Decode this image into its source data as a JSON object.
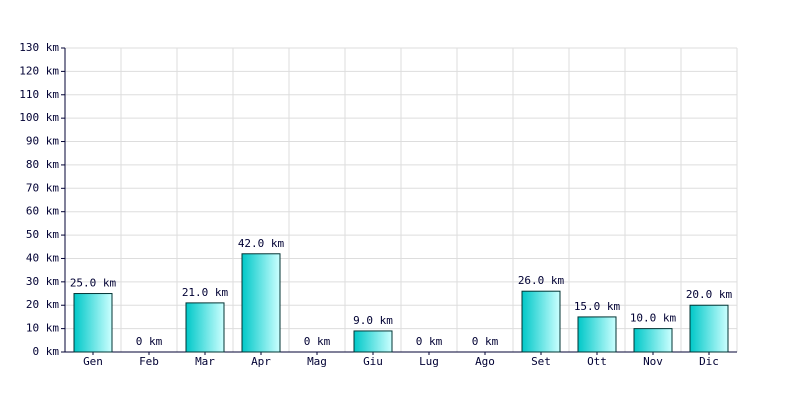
{
  "chart_data": {
    "type": "bar",
    "categories": [
      "Gen",
      "Feb",
      "Mar",
      "Apr",
      "Mag",
      "Giu",
      "Lug",
      "Ago",
      "Set",
      "Ott",
      "Nov",
      "Dic"
    ],
    "values": [
      25,
      0,
      21,
      42,
      0,
      9,
      0,
      0,
      26,
      15,
      10,
      20
    ],
    "value_labels": [
      "25.0 km",
      "0 km",
      "21.0 km",
      "42.0 km",
      "0 km",
      "9.0 km",
      "0 km",
      "0 km",
      "26.0 km",
      "15.0 km",
      "10.0 km",
      "20.0 km"
    ],
    "color": "#00c8c8",
    "ylim": [
      0,
      130
    ],
    "yticks": [
      {
        "value": 0,
        "label": "0 km"
      },
      {
        "value": 10,
        "label": "10 km"
      },
      {
        "value": 20,
        "label": "20 km"
      },
      {
        "value": 30,
        "label": "30 km"
      },
      {
        "value": 40,
        "label": "40 km"
      },
      {
        "value": 50,
        "label": "50 km"
      },
      {
        "value": 60,
        "label": "60 km"
      },
      {
        "value": 70,
        "label": "70 km"
      },
      {
        "value": 80,
        "label": "80 km"
      },
      {
        "value": 90,
        "label": "90 km"
      },
      {
        "value": 100,
        "label": "100 km"
      },
      {
        "value": 110,
        "label": "110 km"
      },
      {
        "value": 120,
        "label": "120 km"
      },
      {
        "value": 130,
        "label": "130 km"
      }
    ],
    "grid": true
  }
}
